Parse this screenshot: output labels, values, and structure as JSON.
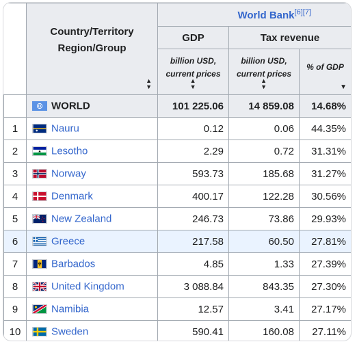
{
  "header": {
    "country_label_line1": "Country/Territory",
    "country_label_line2": "Region/Group",
    "source": "World Bank",
    "source_refs": "[6][7]",
    "gdp": "GDP",
    "tax_revenue": "Tax revenue",
    "gdp_unit_line1": "billion USD,",
    "gdp_unit_line2": "current prices",
    "tax_unit_line1": "billion USD,",
    "tax_unit_line2": "current prices",
    "pct_unit": "% of GDP",
    "sort_icon": "sort-icon",
    "sort_desc_icon": "sort-descending-icon"
  },
  "world": {
    "name": "WORLD",
    "flag": "un-flag",
    "gdp": "101 225.06",
    "tax": "14 859.08",
    "pct": "14.68%"
  },
  "rows": [
    {
      "rank": "1",
      "name": "Nauru",
      "flag": "nauru-flag",
      "gdp": "0.12",
      "tax": "0.06",
      "pct": "44.35%"
    },
    {
      "rank": "2",
      "name": "Lesotho",
      "flag": "lesotho-flag",
      "gdp": "2.29",
      "tax": "0.72",
      "pct": "31.31%"
    },
    {
      "rank": "3",
      "name": "Norway",
      "flag": "norway-flag",
      "gdp": "593.73",
      "tax": "185.68",
      "pct": "31.27%"
    },
    {
      "rank": "4",
      "name": "Denmark",
      "flag": "denmark-flag",
      "gdp": "400.17",
      "tax": "122.28",
      "pct": "30.56%"
    },
    {
      "rank": "5",
      "name": "New Zealand",
      "flag": "new-zealand-flag",
      "gdp": "246.73",
      "tax": "73.86",
      "pct": "29.93%"
    },
    {
      "rank": "6",
      "name": "Greece",
      "flag": "greece-flag",
      "gdp": "217.58",
      "tax": "60.50",
      "pct": "27.81%"
    },
    {
      "rank": "7",
      "name": "Barbados",
      "flag": "barbados-flag",
      "gdp": "4.85",
      "tax": "1.33",
      "pct": "27.39%"
    },
    {
      "rank": "8",
      "name": "United Kingdom",
      "flag": "united-kingdom-flag",
      "gdp": "3 088.84",
      "tax": "843.35",
      "pct": "27.30%"
    },
    {
      "rank": "9",
      "name": "Namibia",
      "flag": "namibia-flag",
      "gdp": "12.57",
      "tax": "3.41",
      "pct": "27.17%"
    },
    {
      "rank": "10",
      "name": "Sweden",
      "flag": "sweden-flag",
      "gdp": "590.41",
      "tax": "160.08",
      "pct": "27.11%"
    }
  ],
  "colors": {
    "link": "#3366cc",
    "header_bg": "#eaecf0",
    "border": "#a2a9b1",
    "highlight_row": "#eaf3ff"
  }
}
